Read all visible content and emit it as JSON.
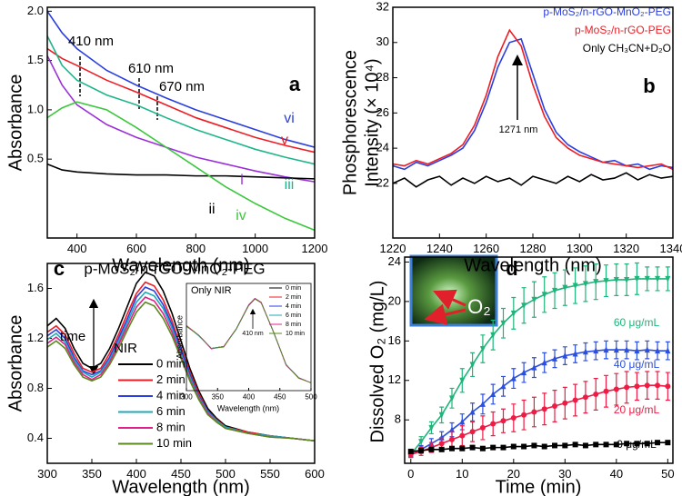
{
  "chart_data": [
    {
      "type": "line",
      "panel_label": "a",
      "x_label": "Wavelength (nm)",
      "y_label": "Absorbance",
      "xlim": [
        300,
        1200
      ],
      "xticks": [
        400,
        600,
        800,
        1000,
        1200
      ],
      "ylim": [
        -0.3,
        2.04
      ],
      "yticks": [
        0.5,
        {
          "value": 1,
          "label": "1.0"
        },
        1.5,
        {
          "value": 2,
          "label": "2.0"
        }
      ],
      "annotations": [
        "410 nm",
        "610 nm",
        "670 nm"
      ],
      "x": [
        300,
        350,
        400,
        500,
        600,
        700,
        800,
        900,
        1000,
        1100,
        1200
      ],
      "series": [
        {
          "name": "vi",
          "color": "#2b3fe0",
          "values": [
            2.0,
            1.78,
            1.62,
            1.4,
            1.25,
            1.12,
            1.0,
            0.9,
            0.8,
            0.7,
            0.62
          ]
        },
        {
          "name": "v",
          "color": "#ee1c24",
          "values": [
            1.62,
            1.52,
            1.45,
            1.3,
            1.18,
            1.05,
            0.92,
            0.82,
            0.72,
            0.64,
            0.57
          ]
        },
        {
          "name": "i",
          "color": "#9b30d9",
          "values": [
            1.55,
            1.25,
            1.05,
            0.85,
            0.72,
            0.62,
            0.52,
            0.45,
            0.38,
            0.32,
            0.27
          ]
        },
        {
          "name": "iii",
          "color": "#1fb58a",
          "values": [
            1.75,
            1.45,
            1.3,
            1.15,
            1.05,
            0.92,
            0.8,
            0.7,
            0.6,
            0.52,
            0.45
          ]
        },
        {
          "name": "ii",
          "color": "#000000",
          "values": [
            0.45,
            0.39,
            0.37,
            0.35,
            0.34,
            0.34,
            0.33,
            0.33,
            0.32,
            0.31,
            0.3
          ]
        },
        {
          "name": "iv",
          "color": "#3cc83c",
          "values": [
            0.92,
            1.02,
            1.08,
            1.0,
            0.82,
            0.62,
            0.42,
            0.22,
            0.05,
            -0.1,
            -0.22
          ]
        }
      ]
    },
    {
      "type": "line",
      "panel_label": "b",
      "x_label": "Wavelength (nm)",
      "y_label": [
        "Phosphorescence",
        "Intensity (× 10⁴)"
      ],
      "xlim": [
        1220,
        1340
      ],
      "xticks": [
        1220,
        1240,
        1260,
        1280,
        1300,
        1320,
        1340
      ],
      "ylim": [
        18.9,
        32
      ],
      "yticks": [
        22,
        24,
        26,
        28,
        30,
        32
      ],
      "annotations": [
        "1271 nm"
      ],
      "x": [
        1220,
        1225,
        1230,
        1235,
        1240,
        1245,
        1250,
        1255,
        1260,
        1265,
        1270,
        1275,
        1280,
        1285,
        1290,
        1295,
        1300,
        1305,
        1310,
        1315,
        1320,
        1325,
        1330,
        1335,
        1340
      ],
      "series": [
        {
          "name": "p-MoS₂/n-rGO-MnO₂-PEG",
          "color": "#2b3fe0",
          "values": [
            23.0,
            22.8,
            23.2,
            23.0,
            23.3,
            23.6,
            24.0,
            25.0,
            26.6,
            28.6,
            30.0,
            30.2,
            28.2,
            26.2,
            24.9,
            24.2,
            23.8,
            23.5,
            23.2,
            23.3,
            23.0,
            23.1,
            22.8,
            23.0,
            22.9
          ]
        },
        {
          "name": "p-MoS₂/n-rGO-PEG",
          "color": "#ee1c24",
          "values": [
            23.1,
            23.0,
            23.3,
            23.1,
            23.4,
            23.7,
            24.2,
            25.3,
            27.0,
            29.2,
            30.7,
            29.8,
            27.6,
            25.8,
            24.6,
            24.0,
            23.6,
            23.4,
            23.2,
            23.1,
            23.0,
            22.9,
            23.0,
            23.1,
            22.8
          ]
        },
        {
          "name": "Only CH₃CN+D₂O",
          "color": "#000000",
          "values": [
            22.0,
            22.3,
            21.8,
            22.2,
            22.4,
            21.9,
            22.3,
            22.0,
            22.4,
            22.1,
            22.3,
            21.9,
            22.4,
            22.2,
            22.0,
            22.4,
            22.1,
            22.5,
            22.2,
            22.3,
            22.6,
            22.2,
            22.5,
            22.3,
            22.4
          ]
        }
      ]
    },
    {
      "type": "line",
      "panel_label": "c",
      "title": "p-MoS₂/n-rGO-MnO₂-PEG",
      "x_label": "Wavelength (nm)",
      "y_label": "Absorbance",
      "xlim": [
        300,
        600
      ],
      "xticks": [
        300,
        350,
        400,
        450,
        500,
        550,
        600
      ],
      "ylim": [
        0.2,
        1.8
      ],
      "yticks": [
        0.4,
        0.8,
        1.2,
        1.6
      ],
      "annotations": [
        "time",
        "NIR"
      ],
      "x": [
        300,
        310,
        320,
        330,
        340,
        350,
        360,
        370,
        380,
        390,
        400,
        410,
        420,
        430,
        440,
        450,
        460,
        470,
        480,
        490,
        500,
        525,
        550,
        575,
        600
      ],
      "series": [
        {
          "name": "0 min",
          "color": "#000000",
          "values": [
            1.3,
            1.36,
            1.28,
            1.12,
            1.0,
            0.96,
            1.0,
            1.12,
            1.28,
            1.46,
            1.64,
            1.73,
            1.7,
            1.58,
            1.4,
            1.18,
            0.96,
            0.78,
            0.64,
            0.56,
            0.5,
            0.45,
            0.42,
            0.4,
            0.38
          ]
        },
        {
          "name": "2 min",
          "color": "#ee1c24",
          "values": [
            1.25,
            1.3,
            1.23,
            1.08,
            0.96,
            0.93,
            0.96,
            1.08,
            1.23,
            1.4,
            1.56,
            1.65,
            1.62,
            1.51,
            1.34,
            1.13,
            0.93,
            0.76,
            0.62,
            0.55,
            0.49,
            0.45,
            0.42,
            0.4,
            0.38
          ]
        },
        {
          "name": "4 min",
          "color": "#2b3fe0",
          "values": [
            1.22,
            1.27,
            1.2,
            1.05,
            0.94,
            0.91,
            0.94,
            1.05,
            1.2,
            1.36,
            1.53,
            1.61,
            1.58,
            1.47,
            1.31,
            1.11,
            0.91,
            0.74,
            0.62,
            0.54,
            0.49,
            0.44,
            0.42,
            0.4,
            0.38
          ]
        },
        {
          "name": "6 min",
          "color": "#1fa9b5",
          "values": [
            1.19,
            1.24,
            1.17,
            1.03,
            0.93,
            0.89,
            0.93,
            1.03,
            1.17,
            1.33,
            1.49,
            1.57,
            1.54,
            1.44,
            1.28,
            1.08,
            0.89,
            0.73,
            0.61,
            0.54,
            0.49,
            0.44,
            0.42,
            0.4,
            0.38
          ]
        },
        {
          "name": "8 min",
          "color": "#e0218a",
          "values": [
            1.16,
            1.21,
            1.15,
            1.01,
            0.91,
            0.87,
            0.91,
            1.01,
            1.15,
            1.3,
            1.45,
            1.53,
            1.5,
            1.4,
            1.25,
            1.06,
            0.87,
            0.72,
            0.6,
            0.53,
            0.48,
            0.44,
            0.41,
            0.4,
            0.38
          ]
        },
        {
          "name": "10 min",
          "color": "#5a8a1e",
          "values": [
            1.13,
            1.18,
            1.12,
            0.99,
            0.89,
            0.86,
            0.89,
            0.99,
            1.12,
            1.27,
            1.41,
            1.49,
            1.46,
            1.36,
            1.22,
            1.04,
            0.86,
            0.71,
            0.59,
            0.53,
            0.48,
            0.44,
            0.41,
            0.4,
            0.38
          ]
        }
      ]
    },
    {
      "type": "line",
      "title": "Only NIR",
      "x_label": "Wavelength (nm)",
      "y_label": "Absorbance",
      "xlim": [
        300,
        500
      ],
      "xticks": [
        300,
        350,
        400,
        450,
        500
      ],
      "ylim": [
        0.3,
        1.95
      ],
      "annotations": [
        "410 nm"
      ],
      "x": [
        300,
        320,
        340,
        360,
        380,
        400,
        410,
        420,
        440,
        460,
        480,
        500
      ],
      "series": [
        {
          "name": "0 min",
          "color": "#000000",
          "values": [
            1.3,
            1.15,
            0.95,
            0.98,
            1.25,
            1.62,
            1.72,
            1.66,
            1.2,
            0.7,
            0.5,
            0.42
          ]
        },
        {
          "name": "2 min",
          "color": "#ee1c24",
          "values": [
            1.3,
            1.15,
            0.95,
            0.98,
            1.25,
            1.61,
            1.71,
            1.66,
            1.2,
            0.7,
            0.5,
            0.42
          ]
        },
        {
          "name": "4 min",
          "color": "#2b3fe0",
          "values": [
            1.29,
            1.15,
            0.95,
            0.98,
            1.25,
            1.62,
            1.72,
            1.65,
            1.2,
            0.7,
            0.5,
            0.42
          ]
        },
        {
          "name": "6 min",
          "color": "#1fa9b5",
          "values": [
            1.3,
            1.14,
            0.95,
            0.98,
            1.24,
            1.61,
            1.71,
            1.66,
            1.19,
            0.7,
            0.5,
            0.42
          ]
        },
        {
          "name": "8 min",
          "color": "#e0218a",
          "values": [
            1.3,
            1.15,
            0.94,
            0.98,
            1.25,
            1.62,
            1.72,
            1.66,
            1.2,
            0.69,
            0.5,
            0.42
          ]
        },
        {
          "name": "10 min",
          "color": "#5a8a1e",
          "values": [
            1.29,
            1.15,
            0.95,
            0.97,
            1.25,
            1.61,
            1.71,
            1.65,
            1.2,
            0.7,
            0.49,
            0.42
          ]
        }
      ]
    },
    {
      "type": "line",
      "panel_label": "d",
      "x_label": "Time (min)",
      "y_label": "Dissolved O₂ (mg/L)",
      "xlim": [
        -1.2,
        51
      ],
      "xticks": [
        0,
        10,
        20,
        30,
        40,
        50
      ],
      "ylim": [
        3.6,
        24.5
      ],
      "yticks": [
        8,
        12,
        16,
        20,
        24
      ],
      "annotations": [
        "O₂"
      ],
      "x": [
        0,
        2,
        4,
        6,
        8,
        10,
        12,
        14,
        16,
        18,
        20,
        22,
        24,
        26,
        28,
        30,
        32,
        34,
        36,
        38,
        40,
        42,
        44,
        46,
        48,
        50
      ],
      "series": [
        {
          "name": "60 μg/mL",
          "color": "#1fb57a",
          "marker": "triangle-down",
          "values": [
            4.5,
            5.8,
            7.2,
            8.5,
            10.2,
            12.0,
            13.6,
            15.2,
            16.6,
            17.8,
            18.8,
            19.6,
            20.2,
            20.7,
            21.1,
            21.4,
            21.6,
            21.8,
            22.0,
            22.1,
            22.2,
            22.2,
            22.3,
            22.3,
            22.3,
            22.3
          ],
          "errors": [
            0.3,
            0.5,
            0.6,
            0.8,
            1,
            1.2,
            1.2,
            1.4,
            1.5,
            1.5,
            1.6,
            1.8,
            1.8,
            1.8,
            1.8,
            1.8,
            1.8,
            1.8,
            1.8,
            1.6,
            1.6,
            1.6,
            1.6,
            1.2,
            1.2,
            1.2
          ]
        },
        {
          "name": "40 μg/mL",
          "color": "#2b4fe0",
          "marker": "triangle-up",
          "values": [
            4.5,
            5.0,
            5.6,
            6.2,
            7.0,
            7.8,
            8.8,
            9.6,
            10.6,
            11.4,
            12.2,
            12.8,
            13.3,
            13.8,
            14.2,
            14.5,
            14.7,
            14.9,
            15.0,
            15.1,
            15.1,
            15.1,
            15.0,
            15.1,
            15.0,
            15.0
          ],
          "errors": [
            0.3,
            0.4,
            0.5,
            0.6,
            0.7,
            0.8,
            0.9,
            1,
            1,
            1,
            1,
            1,
            1,
            1,
            0.9,
            0.9,
            0.9,
            0.9,
            0.9,
            0.9,
            0.9,
            0.9,
            0.9,
            0.9,
            0.9,
            0.9
          ]
        },
        {
          "name": "20 μg/mL",
          "color": "#ee1c44",
          "marker": "circle",
          "values": [
            4.5,
            4.8,
            5.2,
            5.6,
            6.0,
            6.4,
            6.8,
            7.2,
            7.6,
            7.9,
            8.2,
            8.5,
            8.8,
            9.1,
            9.4,
            9.7,
            10.0,
            10.3,
            10.6,
            10.9,
            11.1,
            11.3,
            11.4,
            11.5,
            11.5,
            11.4
          ],
          "errors": [
            0.3,
            0.4,
            0.5,
            0.6,
            0.8,
            1,
            1,
            1.2,
            1.2,
            1.2,
            1.4,
            1.5,
            1.5,
            1.6,
            1.6,
            1.6,
            1.6,
            1.6,
            1.6,
            1.6,
            1.6,
            1.6,
            1.4,
            1.4,
            1.4,
            1.4
          ]
        },
        {
          "name": "0 μg/mL",
          "color": "#000000",
          "marker": "square",
          "values": [
            4.8,
            4.9,
            5.0,
            5.0,
            5.1,
            5.1,
            5.2,
            5.1,
            5.2,
            5.2,
            5.3,
            5.3,
            5.4,
            5.3,
            5.4,
            5.4,
            5.5,
            5.4,
            5.5,
            5.5,
            5.5,
            5.6,
            5.6,
            5.6,
            5.7,
            5.7
          ],
          "errors": [
            0.1,
            0.1,
            0.1,
            0.1,
            0.1,
            0.1,
            0.1,
            0.1,
            0.1,
            0.1,
            0.1,
            0.1,
            0.1,
            0.1,
            0.1,
            0.1,
            0.1,
            0.1,
            0.1,
            0.1,
            0.1,
            0.1,
            0.1,
            0.1,
            0.1,
            0.1
          ]
        }
      ]
    }
  ]
}
